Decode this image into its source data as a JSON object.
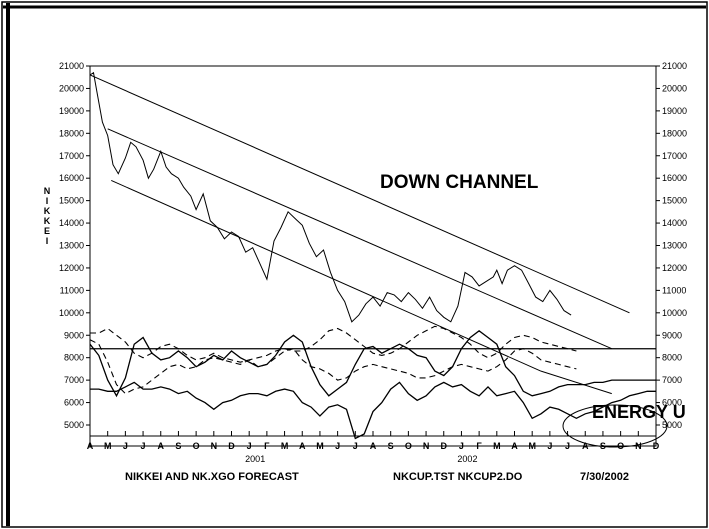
{
  "chart_data": {
    "type": "line",
    "ylabel": "NIKKEI",
    "ylim": [
      5000,
      21000
    ],
    "y_ticks": [
      "21000",
      "20000",
      "19000",
      "18000",
      "17000",
      "16000",
      "15000",
      "14000",
      "13000",
      "12000",
      "11000",
      "10000",
      "9000",
      "8000",
      "7000",
      "6000",
      "5000"
    ],
    "x_months": [
      "A",
      "M",
      "J",
      "J",
      "A",
      "S",
      "O",
      "N",
      "D",
      "J",
      "F",
      "M",
      "A",
      "M",
      "J",
      "J",
      "A",
      "S",
      "O",
      "N",
      "D",
      "J",
      "F",
      "M",
      "A",
      "M",
      "J",
      "J",
      "A",
      "S",
      "O",
      "N",
      "D"
    ],
    "x_years": [
      {
        "label": "2001",
        "month_index": 9
      },
      {
        "label": "2002",
        "month_index": 21
      }
    ],
    "annotations": {
      "channel": "DOWN CHANNEL",
      "energy": "ENERGY U"
    },
    "footer": {
      "left": "NIKKEI AND NK.XGO FORECAST",
      "middle": "NKCUP.TST NKCUP2.DO",
      "right": "7/30/2002"
    },
    "horizontal_line": 8400,
    "series": [
      {
        "style": "price",
        "x": [
          0,
          0.2,
          0.4,
          0.7,
          1,
          1.3,
          1.6,
          2,
          2.3,
          2.6,
          3,
          3.3,
          3.6,
          4,
          4.3,
          4.6,
          5,
          5.3,
          5.7,
          6,
          6.4,
          6.8,
          7.2,
          7.6,
          8,
          8.4,
          8.8,
          9.2,
          9.6,
          10,
          10.4,
          10.8,
          11.2,
          11.6,
          12,
          12.4,
          12.8,
          13.2,
          13.6,
          14,
          14.4,
          14.8,
          15.2,
          15.6,
          16,
          16.4,
          16.8,
          17.2,
          17.6,
          18,
          18.4,
          18.8,
          19.2,
          19.6,
          20,
          20.4,
          20.8,
          21.2,
          21.6,
          22,
          22.4,
          22.8,
          23,
          23.3,
          23.6,
          24,
          24.4,
          24.8,
          25.2,
          25.6,
          26,
          26.4,
          26.8,
          27.2
        ],
        "y": [
          20600,
          20700,
          19800,
          18500,
          17900,
          16600,
          16200,
          16900,
          17600,
          17400,
          16800,
          16000,
          16400,
          17200,
          16500,
          16200,
          16000,
          15600,
          15200,
          14600,
          15300,
          14100,
          13800,
          13300,
          13600,
          13400,
          12700,
          12900,
          12200,
          11500,
          13200,
          13800,
          14500,
          14200,
          13900,
          13100,
          12500,
          12800,
          11800,
          11000,
          10500,
          9600,
          9900,
          10400,
          10700,
          10300,
          10900,
          10800,
          10500,
          10900,
          10600,
          10200,
          10700,
          10100,
          9800,
          9600,
          10300,
          11800,
          11600,
          11200,
          11400,
          11600,
          11900,
          11300,
          11900,
          12100,
          11900,
          11300,
          10700,
          10500,
          11000,
          10600,
          10100,
          9900
        ]
      },
      {
        "style": "solid",
        "x": [
          0,
          0.5,
          1,
          1.5,
          2,
          2.5,
          3,
          3.5,
          4,
          4.5,
          5,
          5.5,
          6,
          6.5,
          7,
          7.5,
          8,
          8.5,
          9,
          9.5,
          10,
          10.5,
          11,
          11.5,
          12,
          12.5,
          13,
          13.5,
          14,
          14.5,
          15,
          15.5,
          16,
          16.5,
          17,
          17.5,
          18,
          18.5,
          19,
          19.5,
          20,
          20.5,
          21,
          21.5,
          22,
          22.5,
          23,
          23.5,
          24,
          24.5,
          25,
          25.5,
          26,
          26.5,
          27,
          27.5,
          28,
          28.5,
          29,
          29.5,
          30,
          30.5,
          31,
          31.5,
          32
        ],
        "y": [
          8600,
          8100,
          7000,
          6300,
          7100,
          8600,
          8900,
          8200,
          7900,
          8000,
          8300,
          8000,
          7600,
          7800,
          8100,
          7900,
          8300,
          8000,
          7800,
          7600,
          7700,
          8100,
          8700,
          9000,
          8700,
          7600,
          6800,
          6300,
          6600,
          6900,
          7700,
          8400,
          8500,
          8200,
          8400,
          8600,
          8400,
          8100,
          8000,
          7400,
          7200,
          7600,
          8400,
          8900,
          9200,
          8900,
          8600,
          7600,
          7200,
          6500,
          6300,
          6400,
          6500,
          6700,
          6800,
          6800,
          6800,
          6900,
          6900,
          7000,
          7000,
          7000,
          7000,
          7000,
          7000
        ]
      },
      {
        "style": "dashed",
        "x": [
          0,
          0.5,
          1,
          1.5,
          2,
          2.5,
          3,
          3.5,
          4,
          4.5,
          5,
          5.5,
          6,
          6.5,
          7,
          7.5,
          8,
          8.5,
          9,
          9.5,
          10,
          10.5,
          11,
          11.5,
          12,
          12.5,
          13,
          13.5,
          14,
          14.5,
          15,
          15.5,
          16,
          16.5,
          17,
          17.5,
          18,
          18.5,
          19,
          19.5,
          20,
          20.5,
          21,
          21.5,
          22,
          22.5,
          23,
          23.5,
          24,
          24.5,
          25,
          25.5,
          26,
          26.5,
          27,
          27.5
        ],
        "y": [
          9100,
          9100,
          9300,
          9000,
          8700,
          8200,
          8000,
          8200,
          8500,
          8600,
          8400,
          8100,
          7900,
          8000,
          8200,
          8000,
          7900,
          7800,
          7900,
          8000,
          8100,
          8300,
          8400,
          8300,
          8300,
          8500,
          8800,
          9200,
          9300,
          9100,
          8800,
          8500,
          8200,
          8100,
          8200,
          8400,
          8700,
          9000,
          9200,
          9400,
          9300,
          9100,
          8900,
          8600,
          8200,
          8000,
          8200,
          8600,
          8900,
          9000,
          8900,
          8700,
          8600,
          8500,
          8400,
          8300
        ]
      },
      {
        "style": "dashed",
        "x": [
          0,
          0.5,
          1,
          1.5,
          2,
          2.5,
          3,
          3.5,
          4,
          4.5,
          5,
          5.5,
          6,
          6.5,
          7,
          7.5,
          8,
          8.5,
          9,
          9.5,
          10,
          10.5,
          11,
          11.5,
          12,
          12.5,
          13,
          13.5,
          14,
          14.5,
          15,
          15.5,
          16,
          16.5,
          17,
          17.5,
          18,
          18.5,
          19,
          19.5,
          20,
          20.5,
          21,
          21.5,
          22,
          22.5,
          23,
          23.5,
          24,
          24.5,
          25,
          25.5,
          26,
          26.5,
          27,
          27.5
        ],
        "y": [
          8800,
          8600,
          7800,
          6800,
          6400,
          6600,
          6700,
          7000,
          7300,
          7600,
          7700,
          7500,
          7600,
          7900,
          8000,
          7900,
          7800,
          7700,
          7900,
          7600,
          7700,
          8000,
          8300,
          8400,
          7900,
          7600,
          7500,
          7300,
          7000,
          7100,
          7400,
          7600,
          7700,
          7600,
          7500,
          7400,
          7300,
          7100,
          7100,
          7200,
          7400,
          7600,
          7700,
          7600,
          7500,
          7400,
          7600,
          7900,
          8300,
          8400,
          8200,
          7900,
          7800,
          7700,
          7600,
          7500
        ]
      },
      {
        "style": "solid",
        "x": [
          0,
          0.5,
          1,
          1.5,
          2,
          2.5,
          3,
          3.5,
          4,
          4.5,
          5,
          5.5,
          6,
          6.5,
          7,
          7.5,
          8,
          8.5,
          9,
          9.5,
          10,
          10.5,
          11,
          11.5,
          12,
          12.5,
          13,
          13.5,
          14,
          14.5,
          15,
          15.5,
          16,
          16.5,
          17,
          17.5,
          18,
          18.5,
          19,
          19.5,
          20,
          20.5,
          21,
          21.5,
          22,
          22.5,
          23,
          23.5,
          24,
          24.5,
          25,
          25.5,
          26,
          26.5,
          27,
          27.5,
          28,
          28.5,
          29,
          29.5,
          30,
          30.5,
          31,
          31.5,
          32
        ],
        "y": [
          6600,
          6600,
          6500,
          6500,
          6700,
          6900,
          6600,
          6600,
          6700,
          6600,
          6400,
          6500,
          6200,
          6000,
          5700,
          6000,
          6100,
          6300,
          6400,
          6400,
          6300,
          6500,
          6600,
          6500,
          6000,
          5800,
          5400,
          5800,
          5900,
          5700,
          4400,
          4600,
          5600,
          6000,
          6600,
          6900,
          6400,
          6100,
          6300,
          6700,
          6900,
          6700,
          6800,
          6500,
          6300,
          6700,
          6300,
          6400,
          6500,
          6000,
          5300,
          5500,
          5800,
          5700,
          5500,
          5300,
          5500,
          5600,
          5800,
          6000,
          6100,
          6300,
          6400,
          6500,
          6500
        ]
      }
    ],
    "trend_lines": [
      {
        "name": "upper-channel",
        "x": [
          0,
          30.5
        ],
        "y": [
          20600,
          10000
        ]
      },
      {
        "name": "middle-channel",
        "x": [
          1,
          29.5
        ],
        "y": [
          18200,
          8400
        ]
      },
      {
        "name": "lower-channel",
        "x": [
          1.2,
          25.5
        ],
        "y": [
          15900,
          7400
        ]
      },
      {
        "name": "lower-extension",
        "x": [
          25.5,
          29.5
        ],
        "y": [
          7400,
          6400
        ]
      }
    ]
  }
}
